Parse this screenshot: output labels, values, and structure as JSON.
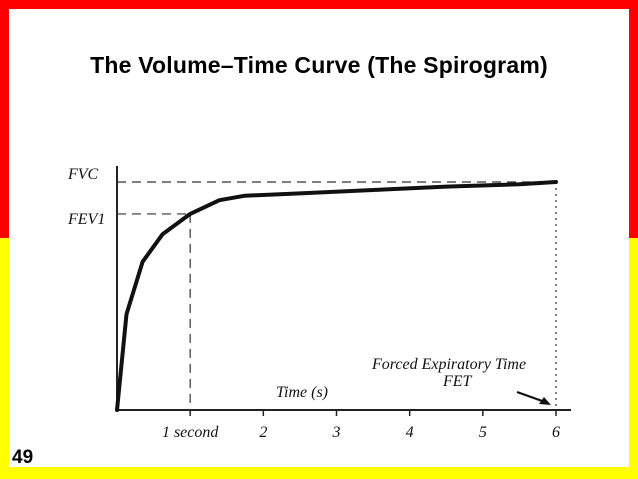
{
  "slide": {
    "title": "The Volume–Time Curve (The Spirogram)",
    "page_number": "49",
    "colors": {
      "top_band": "#ff0000",
      "bottom_band": "#ffff00",
      "background": "#ffffff",
      "curve": "#111111"
    }
  },
  "chart_data": {
    "type": "line",
    "title": "",
    "xlabel": "Time (s)",
    "ylabel": "",
    "xlim": [
      0,
      6.0
    ],
    "ylim": [
      0,
      1.0
    ],
    "x_tick_labels": [
      {
        "x": 1,
        "label": "1 second"
      },
      {
        "x": 2,
        "label": "2"
      },
      {
        "x": 3,
        "label": "3"
      },
      {
        "x": 4,
        "label": "4"
      },
      {
        "x": 5,
        "label": "5"
      },
      {
        "x": 6,
        "label": "6"
      }
    ],
    "y_reference_labels": [
      {
        "y": 1.0,
        "label": "FVC"
      },
      {
        "y": 0.86,
        "label": "FEV1"
      }
    ],
    "series": [
      {
        "x": [
          0,
          0.13,
          0.35,
          0.62,
          1.0,
          1.4,
          1.75,
          2.5,
          3.5,
          4.5,
          5.5,
          6.0
        ],
        "y": [
          0,
          0.42,
          0.65,
          0.77,
          0.86,
          0.92,
          0.94,
          0.95,
          0.965,
          0.98,
          0.99,
          1.0
        ]
      }
    ],
    "annotations": [
      {
        "text_line1": "Forced Expiratory Time",
        "text_line2": "FET"
      }
    ],
    "grid": false
  }
}
